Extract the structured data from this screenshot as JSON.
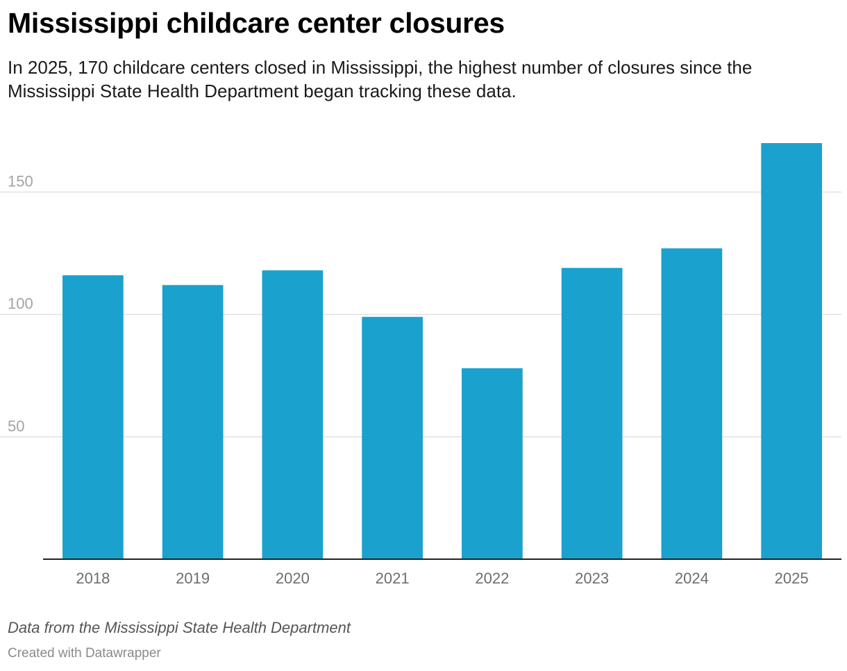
{
  "title": "Mississippi childcare center closures",
  "subtitle": "In 2025, 170 childcare centers closed in Mississippi, the highest number of closures since the Mississippi State Health Department began tracking these data.",
  "source_note": "Data from the Mississippi State Health Department",
  "credit": "Created with Datawrapper",
  "colors": {
    "bar": "#1aa1cd",
    "gridline": "#e1e1e1",
    "baseline": "#222222"
  },
  "chart_data": {
    "type": "bar",
    "categories": [
      "2018",
      "2019",
      "2020",
      "2021",
      "2022",
      "2023",
      "2024",
      "2025"
    ],
    "values": [
      116,
      112,
      118,
      99,
      78,
      119,
      127,
      170
    ],
    "ylim": [
      0,
      170
    ],
    "yticks": [
      50,
      100,
      150
    ],
    "xlabel": "",
    "ylabel": "",
    "grid": true,
    "legend": "none"
  }
}
